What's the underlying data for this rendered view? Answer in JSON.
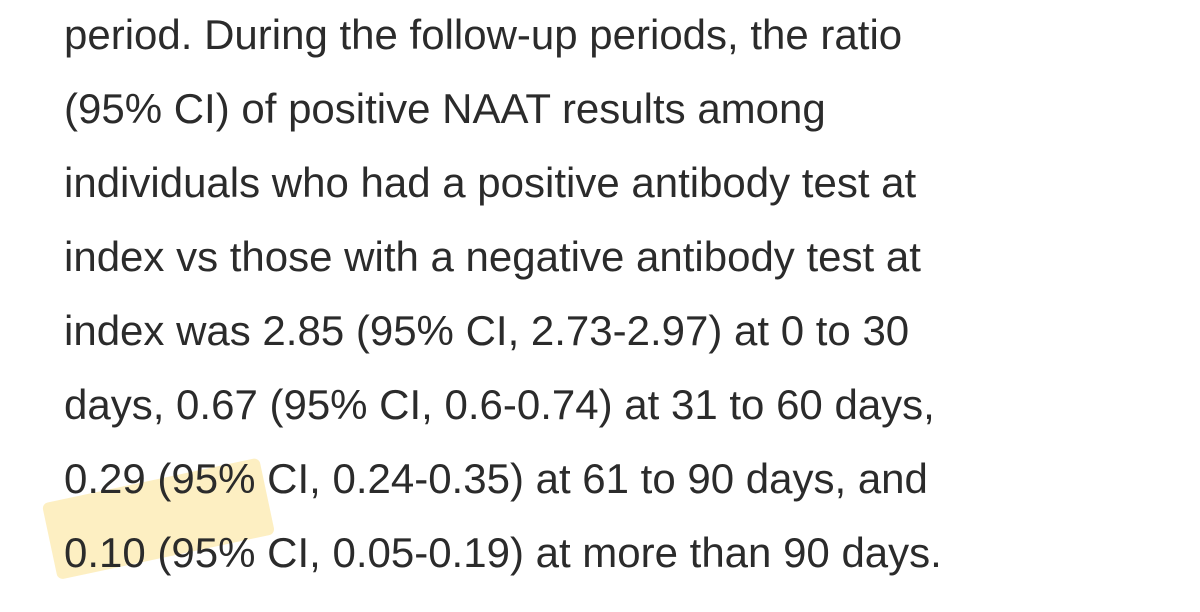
{
  "paragraph": {
    "lines": [
      "period. During the follow-up periods, the ratio",
      "(95% CI) of positive NAAT results among",
      "individuals who had a positive antibody test at",
      "index vs those with a negative antibody test at",
      "index was 2.85 (95% CI, 2.73-2.97) at 0 to 30",
      "days, 0.67 (95% CI, 0.6-0.74) at 31 to 60 days,",
      "0.29 (95% CI, 0.24-0.35) at 61 to 90 days, and",
      "0.10 (95% CI, 0.05-0.19) at more than 90 days."
    ]
  },
  "colors": {
    "text": "#2b2b2b",
    "highlight": "#fadc78",
    "background": "#ffffff"
  }
}
